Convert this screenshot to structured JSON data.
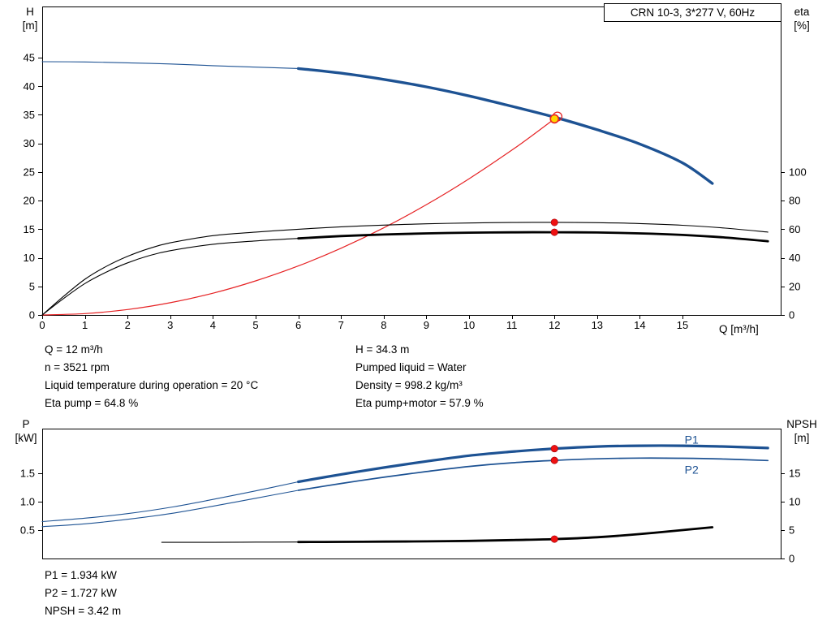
{
  "annotations": {
    "top_left": [
      "Q = 12 m³/h",
      "n = 3521 rpm",
      "Liquid temperature during operation = 20 °C",
      "Eta pump = 64.8 %"
    ],
    "top_right": [
      "H = 34.3 m",
      "Pumped liquid = Water",
      "Density = 998.2 kg/m³",
      "Eta pump+motor = 57.9 %"
    ],
    "bottom": [
      "P1 = 1.934 kW",
      "P2 = 1.727 kW",
      "NPSH = 3.42 m"
    ]
  },
  "colors": {
    "curve_blue": "#1d5293",
    "curve_black": "#000000",
    "curve_red": "#e62325",
    "marker_red": "#ee1111",
    "marker_yellow": "#ffd700"
  },
  "chart_data": [
    {
      "type": "line",
      "title": "CRN 10-3, 3*277 V, 60Hz",
      "x_axis": {
        "label": "Q [m³/h]",
        "min": 0,
        "max": 17.3,
        "show_labels": true,
        "ticks": [
          0,
          1,
          2,
          3,
          4,
          5,
          6,
          7,
          8,
          9,
          10,
          11,
          12,
          13,
          14,
          15
        ]
      },
      "y_left": {
        "label_lines": [
          "H",
          "[m]"
        ],
        "min": 0,
        "max": 53.95,
        "ticks": [
          0,
          5,
          10,
          15,
          20,
          25,
          30,
          35,
          40,
          45
        ]
      },
      "y_right": {
        "label_lines": [
          "eta",
          "[%]"
        ],
        "min": 0,
        "max": 215.9,
        "ticks": [
          0,
          20,
          40,
          60,
          80,
          100
        ]
      },
      "series": [
        {
          "name": "pump-head-H",
          "axis": "left",
          "color_key": "curve_blue",
          "thin_width": 1.1,
          "thick_width": 3.4,
          "thick_from": 6,
          "points": [
            [
              0,
              44.3
            ],
            [
              1,
              44.25
            ],
            [
              2,
              44.1
            ],
            [
              3,
              43.9
            ],
            [
              4,
              43.6
            ],
            [
              5,
              43.35
            ],
            [
              6,
              43.1
            ],
            [
              7,
              42.3
            ],
            [
              8,
              41.2
            ],
            [
              9,
              39.9
            ],
            [
              10,
              38.3
            ],
            [
              11,
              36.5
            ],
            [
              12,
              34.6
            ],
            [
              13,
              32.4
            ],
            [
              14,
              29.9
            ],
            [
              15,
              26.6
            ],
            [
              15.7,
              23.0
            ]
          ]
        },
        {
          "name": "system-curve",
          "axis": "left",
          "color_key": "curve_red",
          "width": 1.2,
          "points": [
            [
              0,
              0
            ],
            [
              1,
              0.24
            ],
            [
              2,
              0.95
            ],
            [
              3,
              2.14
            ],
            [
              4,
              3.81
            ],
            [
              5,
              5.96
            ],
            [
              6,
              8.58
            ],
            [
              7,
              11.67
            ],
            [
              8,
              15.24
            ],
            [
              9,
              19.29
            ],
            [
              10,
              23.82
            ],
            [
              11,
              28.82
            ],
            [
              11.5,
              31.5
            ],
            [
              12,
              34.3
            ],
            [
              12.07,
              34.7
            ]
          ]
        },
        {
          "name": "eta-pump",
          "axis": "right",
          "color_key": "curve_black",
          "width": 1.1,
          "points": [
            [
              0,
              0
            ],
            [
              0.5,
              13
            ],
            [
              1,
              25
            ],
            [
              1.5,
              34
            ],
            [
              2,
              41
            ],
            [
              2.5,
              46.5
            ],
            [
              3,
              50.5
            ],
            [
              4,
              55.5
            ],
            [
              5,
              58
            ],
            [
              6,
              60
            ],
            [
              7,
              61.7
            ],
            [
              8,
              62.9
            ],
            [
              9,
              63.8
            ],
            [
              10,
              64.4
            ],
            [
              11,
              64.7
            ],
            [
              12,
              64.8
            ],
            [
              13,
              64.6
            ],
            [
              14,
              64.0
            ],
            [
              15,
              62.8
            ],
            [
              16,
              60.8
            ],
            [
              17,
              58.0
            ]
          ]
        },
        {
          "name": "eta-pump-motor",
          "axis": "right",
          "color_key": "curve_black",
          "thin_width": 1.1,
          "thick_width": 2.8,
          "thick_from": 6,
          "points": [
            [
              0,
              0
            ],
            [
              0.5,
              11.5
            ],
            [
              1,
              22
            ],
            [
              1.5,
              30
            ],
            [
              2,
              36.5
            ],
            [
              2.5,
              41.5
            ],
            [
              3,
              45
            ],
            [
              4,
              49.5
            ],
            [
              5,
              51.8
            ],
            [
              6,
              53.6
            ],
            [
              7,
              55.2
            ],
            [
              8,
              56.3
            ],
            [
              9,
              57.1
            ],
            [
              10,
              57.6
            ],
            [
              11,
              57.85
            ],
            [
              12,
              57.9
            ],
            [
              13,
              57.7
            ],
            [
              14,
              57.1
            ],
            [
              15,
              56.0
            ],
            [
              16,
              54.2
            ],
            [
              17,
              51.6
            ]
          ]
        }
      ],
      "markers": [
        {
          "kind": "open-circle",
          "axis": "left",
          "x": 12.07,
          "y": 34.7
        },
        {
          "kind": "duty-point",
          "axis": "left",
          "x": 12,
          "y": 34.3
        },
        {
          "kind": "dot",
          "axis": "right",
          "x": 12,
          "y": 64.8
        },
        {
          "kind": "dot",
          "axis": "right",
          "x": 12,
          "y": 57.9
        }
      ],
      "curve_labels": []
    },
    {
      "type": "line",
      "title": "",
      "x_axis": {
        "label": "",
        "min": 0,
        "max": 17.3,
        "show_labels": false,
        "ticks": []
      },
      "y_left": {
        "label_lines": [
          "P",
          "[kW]"
        ],
        "min": 0,
        "max": 2.286,
        "ticks": [
          0.5,
          1.0,
          1.5
        ],
        "tick_labels": [
          "0.5",
          "1.0",
          "1.5"
        ]
      },
      "y_right": {
        "label_lines": [
          "NPSH",
          "[m]"
        ],
        "min": 0,
        "max": 22.86,
        "ticks": [
          0,
          5,
          10,
          15
        ]
      },
      "series": [
        {
          "name": "P1",
          "axis": "left",
          "color_key": "curve_blue",
          "thin_width": 1.1,
          "thick_width": 3.2,
          "thick_from": 6,
          "points": [
            [
              0,
              0.65
            ],
            [
              1,
              0.71
            ],
            [
              2,
              0.79
            ],
            [
              3,
              0.9
            ],
            [
              4,
              1.04
            ],
            [
              5,
              1.19
            ],
            [
              6,
              1.35
            ],
            [
              7,
              1.48
            ],
            [
              8,
              1.6
            ],
            [
              9,
              1.71
            ],
            [
              10,
              1.81
            ],
            [
              11,
              1.88
            ],
            [
              12,
              1.934
            ],
            [
              13,
              1.97
            ],
            [
              14,
              1.985
            ],
            [
              15,
              1.985
            ],
            [
              16,
              1.97
            ],
            [
              17,
              1.945
            ]
          ]
        },
        {
          "name": "P2",
          "axis": "left",
          "color_key": "curve_blue",
          "thin_width": 1.1,
          "thick_width": 1.7,
          "thick_from": 6,
          "points": [
            [
              0,
              0.56
            ],
            [
              1,
              0.61
            ],
            [
              2,
              0.69
            ],
            [
              3,
              0.79
            ],
            [
              4,
              0.92
            ],
            [
              5,
              1.06
            ],
            [
              6,
              1.2
            ],
            [
              7,
              1.32
            ],
            [
              8,
              1.43
            ],
            [
              9,
              1.53
            ],
            [
              10,
              1.62
            ],
            [
              11,
              1.685
            ],
            [
              12,
              1.727
            ],
            [
              13,
              1.755
            ],
            [
              14,
              1.768
            ],
            [
              15,
              1.765
            ],
            [
              16,
              1.75
            ],
            [
              17,
              1.725
            ]
          ]
        },
        {
          "name": "NPSH",
          "axis": "right",
          "color_key": "curve_black",
          "thin_width": 1.1,
          "thick_width": 2.8,
          "thick_from": 6,
          "points": [
            [
              2.8,
              2.85
            ],
            [
              4,
              2.85
            ],
            [
              5,
              2.88
            ],
            [
              6,
              2.9
            ],
            [
              7,
              2.93
            ],
            [
              8,
              2.97
            ],
            [
              9,
              3.02
            ],
            [
              10,
              3.1
            ],
            [
              11,
              3.24
            ],
            [
              12,
              3.42
            ],
            [
              13,
              3.75
            ],
            [
              14,
              4.3
            ],
            [
              15,
              5.0
            ],
            [
              15.7,
              5.5
            ]
          ]
        }
      ],
      "markers": [
        {
          "kind": "dot",
          "axis": "left",
          "x": 12,
          "y": 1.934
        },
        {
          "kind": "dot",
          "axis": "left",
          "x": 12,
          "y": 1.727
        },
        {
          "kind": "dot",
          "axis": "right",
          "x": 12,
          "y": 3.42
        }
      ],
      "curve_labels": [
        {
          "text": "P1",
          "x": 15.05,
          "y": 2.08,
          "axis": "left"
        },
        {
          "text": "P2",
          "x": 15.05,
          "y": 1.55,
          "axis": "left"
        }
      ]
    }
  ]
}
